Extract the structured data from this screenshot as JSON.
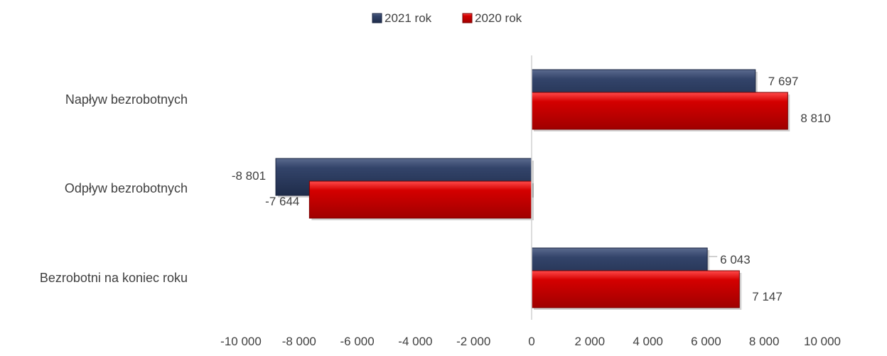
{
  "chart_data": {
    "type": "bar",
    "orientation": "horizontal",
    "categories": [
      "Napływ bezrobotnych",
      "Odpływ bezrobotnych",
      "Bezrobotni na koniec roku"
    ],
    "series": [
      {
        "name": "2021 rok",
        "color": "#2b3a5e",
        "values": [
          7697,
          -8801,
          6043
        ],
        "labels": [
          "7 697",
          "-8 801",
          "6 043"
        ]
      },
      {
        "name": "2020 rok",
        "color": "#c00000",
        "values": [
          8810,
          -7644,
          7147
        ],
        "labels": [
          "8 810",
          "-7 644",
          "7 147"
        ]
      }
    ],
    "xlim": [
      -10000,
      10000
    ],
    "xticks": [
      -10000,
      -8000,
      -6000,
      -4000,
      -2000,
      0,
      2000,
      4000,
      6000,
      8000,
      10000
    ],
    "xtick_labels": [
      "-10 000",
      "-8 000",
      "-6 000",
      "-4 000",
      "-2 000",
      "0",
      "2 000",
      "4 000",
      "6 000",
      "8 000",
      "10 000"
    ],
    "legend_position": "top-center",
    "grid": false,
    "title": "",
    "xlabel": "",
    "ylabel": ""
  }
}
